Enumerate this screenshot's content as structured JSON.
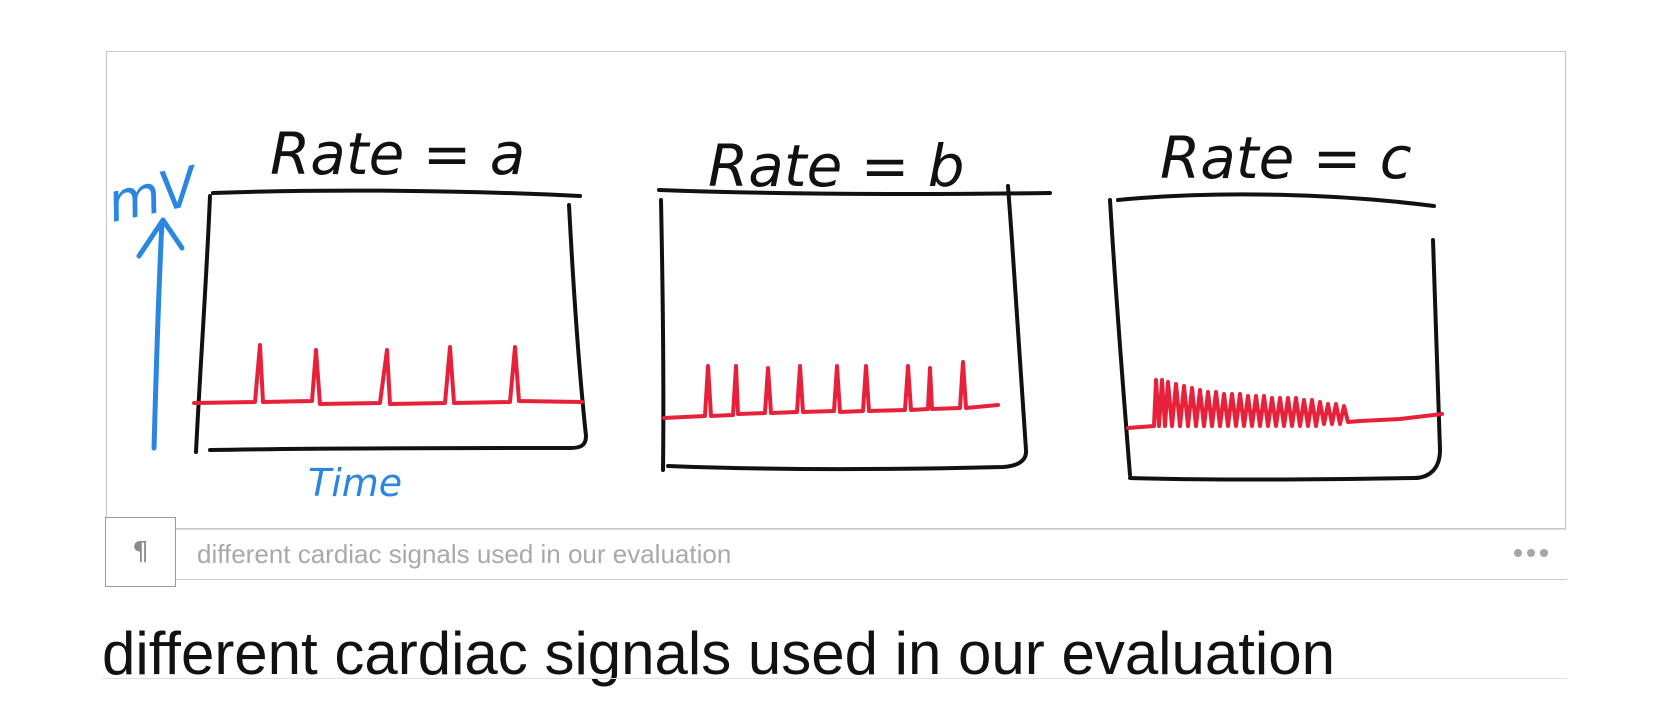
{
  "figure": {
    "sketch": {
      "panels": [
        {
          "title": "Rate = a"
        },
        {
          "title": "Rate = b"
        },
        {
          "title": "Rate = c"
        }
      ],
      "y_axis_label": "mV",
      "x_axis_label": "Time",
      "colors": {
        "frame": "#111111",
        "signal": "#e8213b",
        "axis": "#2a86e0"
      }
    }
  },
  "caption_bar": {
    "paragraph_icon": "¶",
    "placeholder": "different cardiac signals used in our evaluation",
    "value": "",
    "more_icon": "ellipsis-icon"
  },
  "caption_heading": "different cardiac signals used in our evaluation"
}
